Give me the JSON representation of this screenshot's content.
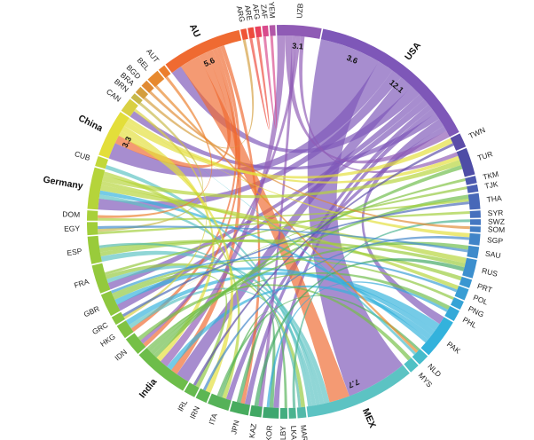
{
  "chart_data": {
    "type": "chord",
    "title": "",
    "countries": [
      {
        "code": "USA",
        "share": 12.1,
        "color": "#7e57b8",
        "major": true
      },
      {
        "code": "TWN",
        "share": 1.0,
        "color": "#5c4ca8",
        "major": false
      },
      {
        "code": "TUR",
        "share": 1.9,
        "color": "#4e4da6",
        "major": false
      },
      {
        "code": "TKM",
        "share": 0.5,
        "color": "#4c58ae",
        "major": false
      },
      {
        "code": "TJK",
        "share": 0.5,
        "color": "#4a5fb3",
        "major": false
      },
      {
        "code": "THA",
        "share": 1.1,
        "color": "#4868b8",
        "major": false
      },
      {
        "code": "SYR",
        "share": 0.5,
        "color": "#4670bd",
        "major": false
      },
      {
        "code": "SWZ",
        "share": 0.4,
        "color": "#4477c1",
        "major": false
      },
      {
        "code": "SOM",
        "share": 0.4,
        "color": "#427dc4",
        "major": false
      },
      {
        "code": "SGP",
        "share": 0.8,
        "color": "#4084c8",
        "major": false
      },
      {
        "code": "SAU",
        "share": 0.8,
        "color": "#3f8bcb",
        "major": false
      },
      {
        "code": "RUS",
        "share": 1.3,
        "color": "#3c8fce",
        "major": false
      },
      {
        "code": "PRT",
        "share": 0.6,
        "color": "#3a96d1",
        "major": false
      },
      {
        "code": "POL",
        "share": 0.8,
        "color": "#389dd4",
        "major": false
      },
      {
        "code": "PNG",
        "share": 0.6,
        "color": "#36a3d6",
        "major": false
      },
      {
        "code": "PHL",
        "share": 0.8,
        "color": "#34a9d8",
        "major": false
      },
      {
        "code": "PAK",
        "share": 2.8,
        "color": "#33b2dc",
        "major": false
      },
      {
        "code": "NLD",
        "share": 0.8,
        "color": "#45bccc",
        "major": false
      },
      {
        "code": "MYS",
        "share": 0.7,
        "color": "#4fc1c5",
        "major": false
      },
      {
        "code": "MEX",
        "share": 7.7,
        "color": "#5cc3c3",
        "major": true
      },
      {
        "code": "MAR",
        "share": 0.6,
        "color": "#52b9a9",
        "major": false
      },
      {
        "code": "LKA",
        "share": 0.5,
        "color": "#4ab38f",
        "major": false
      },
      {
        "code": "LBY",
        "share": 0.5,
        "color": "#44ad7f",
        "major": false
      },
      {
        "code": "KOR",
        "share": 1.1,
        "color": "#3ea76f",
        "major": false
      },
      {
        "code": "KAZ",
        "share": 0.8,
        "color": "#41a863",
        "major": false
      },
      {
        "code": "JPN",
        "share": 1.3,
        "color": "#48ac5e",
        "major": false
      },
      {
        "code": "ITA",
        "share": 1.5,
        "color": "#55b258",
        "major": false
      },
      {
        "code": "IRN",
        "share": 0.8,
        "color": "#5db653",
        "major": false
      },
      {
        "code": "IRL",
        "share": 0.8,
        "color": "#66ba4f",
        "major": false
      },
      {
        "code": "India",
        "share": 3.9,
        "color": "#6dbd4a",
        "major": true
      },
      {
        "code": "IDN",
        "share": 1.3,
        "color": "#75c046",
        "major": false
      },
      {
        "code": "HKG",
        "share": 1.0,
        "color": "#80c342",
        "major": false
      },
      {
        "code": "GRC",
        "share": 0.6,
        "color": "#87c540",
        "major": false
      },
      {
        "code": "GBR",
        "share": 1.6,
        "color": "#8ec73f",
        "major": false
      },
      {
        "code": "FRA",
        "share": 2.0,
        "color": "#93c93d",
        "major": false
      },
      {
        "code": "ESP",
        "share": 1.9,
        "color": "#99cb3b",
        "major": false
      },
      {
        "code": "EGY",
        "share": 0.9,
        "color": "#a1ce3a",
        "major": false
      },
      {
        "code": "DOM",
        "share": 0.7,
        "color": "#a8d039",
        "major": false
      },
      {
        "code": "Germany",
        "share": 2.9,
        "color": "#b5d43a",
        "major": true
      },
      {
        "code": "CUB",
        "share": 0.7,
        "color": "#c2d83a",
        "major": false
      },
      {
        "code": "China",
        "share": 3.3,
        "color": "#e3de3a",
        "major": true
      },
      {
        "code": "CAN",
        "share": 1.0,
        "color": "#d9d043",
        "major": false
      },
      {
        "code": "BRN",
        "share": 0.4,
        "color": "#c7b84a",
        "major": false
      },
      {
        "code": "BRA",
        "share": 0.5,
        "color": "#d49e3e",
        "major": false
      },
      {
        "code": "BGD",
        "share": 0.5,
        "color": "#e08a33",
        "major": false
      },
      {
        "code": "BEL",
        "share": 0.9,
        "color": "#e7892e",
        "major": false
      },
      {
        "code": "AUT",
        "share": 0.5,
        "color": "#ec7f2d",
        "major": false
      },
      {
        "code": "AU",
        "share": 5.6,
        "color": "#ef6a31",
        "major": true
      },
      {
        "code": "ARG",
        "share": 0.4,
        "color": "#ef5536",
        "major": false
      },
      {
        "code": "ARE",
        "share": 0.4,
        "color": "#ed4b3c",
        "major": false
      },
      {
        "code": "AFG",
        "share": 0.4,
        "color": "#e8415d",
        "major": false
      },
      {
        "code": "ZAF",
        "share": 0.4,
        "color": "#d94a8c",
        "major": false
      },
      {
        "code": "YEM",
        "share": 0.4,
        "color": "#b257a8",
        "major": false
      },
      {
        "code": "UZB",
        "share": 3.1,
        "color": "#8f5bb5",
        "major": false
      }
    ],
    "value_labels": [
      {
        "code": "USA",
        "text": "12.1"
      },
      {
        "code": "UZB",
        "text": "3.1"
      },
      {
        "code": "USA",
        "text": "3.6"
      },
      {
        "code": "AU",
        "text": "5.6"
      },
      {
        "code": "China",
        "text": "3.3"
      },
      {
        "code": "MEX",
        "text": "7.7"
      }
    ],
    "flows": [
      {
        "from": "USA",
        "to": "MEX",
        "value": 4.5
      },
      {
        "from": "USA",
        "to": "China",
        "value": 1.2
      },
      {
        "from": "USA",
        "to": "Germany",
        "value": 0.8
      },
      {
        "from": "USA",
        "to": "India",
        "value": 1.0
      },
      {
        "from": "USA",
        "to": "AU",
        "value": 0.8
      },
      {
        "from": "USA",
        "to": "FRA",
        "value": 0.5
      },
      {
        "from": "USA",
        "to": "GBR",
        "value": 0.5
      },
      {
        "from": "USA",
        "to": "JPN",
        "value": 0.4
      },
      {
        "from": "USA",
        "to": "KOR",
        "value": 0.4
      },
      {
        "from": "USA",
        "to": "CAN",
        "value": 0.5
      },
      {
        "from": "USA",
        "to": "PAK",
        "value": 0.6
      },
      {
        "from": "USA",
        "to": "ITA",
        "value": 0.4
      },
      {
        "from": "AU",
        "to": "MEX",
        "value": 1.5
      },
      {
        "from": "AU",
        "to": "China",
        "value": 0.6
      },
      {
        "from": "AU",
        "to": "India",
        "value": 0.5
      },
      {
        "from": "AU",
        "to": "HKG",
        "value": 0.3
      },
      {
        "from": "AU",
        "to": "IDN",
        "value": 0.3
      },
      {
        "from": "AU",
        "to": "JPN",
        "value": 0.3
      },
      {
        "from": "MEX",
        "to": "ESP",
        "value": 0.4
      },
      {
        "from": "MEX",
        "to": "FRA",
        "value": 0.3
      },
      {
        "from": "MEX",
        "to": "Germany",
        "value": 0.3
      },
      {
        "from": "MEX",
        "to": "HKG",
        "value": 0.3
      },
      {
        "from": "MEX",
        "to": "CUB",
        "value": 0.3
      },
      {
        "from": "PAK",
        "to": "HKG",
        "value": 0.6
      },
      {
        "from": "PAK",
        "to": "GBR",
        "value": 0.4
      },
      {
        "from": "PAK",
        "to": "India",
        "value": 0.4
      },
      {
        "from": "PAK",
        "to": "Germany",
        "value": 0.3
      },
      {
        "from": "UZB",
        "to": "India",
        "value": 0.6
      },
      {
        "from": "UZB",
        "to": "USA",
        "value": 0.5
      },
      {
        "from": "UZB",
        "to": "KAZ",
        "value": 0.3
      },
      {
        "from": "UZB",
        "to": "IDN",
        "value": 0.3
      },
      {
        "from": "UZB",
        "to": "TUR",
        "value": 0.3
      },
      {
        "from": "China",
        "to": "IRN",
        "value": 0.4
      },
      {
        "from": "China",
        "to": "India",
        "value": 0.4
      },
      {
        "from": "China",
        "to": "TWN",
        "value": 0.4
      },
      {
        "from": "China",
        "to": "TUR",
        "value": 0.3
      },
      {
        "from": "China",
        "to": "SGP",
        "value": 0.3
      },
      {
        "from": "Germany",
        "to": "RUS",
        "value": 0.4
      },
      {
        "from": "Germany",
        "to": "POL",
        "value": 0.3
      },
      {
        "from": "Germany",
        "to": "TUR",
        "value": 0.4
      },
      {
        "from": "Germany",
        "to": "ITA",
        "value": 0.3
      },
      {
        "from": "India",
        "to": "TUR",
        "value": 0.3
      },
      {
        "from": "India",
        "to": "THA",
        "value": 0.3
      },
      {
        "from": "India",
        "to": "SAU",
        "value": 0.3
      },
      {
        "from": "India",
        "to": "PHL",
        "value": 0.3
      },
      {
        "from": "FRA",
        "to": "MAR",
        "value": 0.3
      },
      {
        "from": "FRA",
        "to": "TJK",
        "value": 0.2
      },
      {
        "from": "ESP",
        "to": "RUS",
        "value": 0.3
      },
      {
        "from": "ESP",
        "to": "PRT",
        "value": 0.3
      },
      {
        "from": "GBR",
        "to": "IRL",
        "value": 0.3
      },
      {
        "from": "GBR",
        "to": "PNG",
        "value": 0.2
      },
      {
        "from": "EGY",
        "to": "SYR",
        "value": 0.2
      },
      {
        "from": "DOM",
        "to": "THA",
        "value": 0.2
      },
      {
        "from": "HKG",
        "to": "TKM",
        "value": 0.2
      },
      {
        "from": "IDN",
        "to": "MYS",
        "value": 0.3
      },
      {
        "from": "JPN",
        "to": "KOR",
        "value": 0.3
      },
      {
        "from": "ITA",
        "to": "LBY",
        "value": 0.2
      },
      {
        "from": "ITA",
        "to": "NLD",
        "value": 0.2
      },
      {
        "from": "KAZ",
        "to": "RUS",
        "value": 0.3
      },
      {
        "from": "LKA",
        "to": "SWZ",
        "value": 0.2
      },
      {
        "from": "BEL",
        "to": "NLD",
        "value": 0.2
      },
      {
        "from": "BGD",
        "to": "SOM",
        "value": 0.2
      },
      {
        "from": "BRA",
        "to": "ARG",
        "value": 0.2
      },
      {
        "from": "ARE",
        "to": "AFG",
        "value": 0.2
      },
      {
        "from": "ZAF",
        "to": "YEM",
        "value": 0.2
      },
      {
        "from": "CAN",
        "to": "GRC",
        "value": 0.2
      },
      {
        "from": "BRN",
        "to": "EGY",
        "value": 0.2
      },
      {
        "from": "AUT",
        "to": "DOM",
        "value": 0.2
      },
      {
        "from": "TWN",
        "to": "IRL",
        "value": 0.2
      },
      {
        "from": "THA",
        "to": "GRC",
        "value": 0.2
      },
      {
        "from": "SGP",
        "to": "IRN",
        "value": 0.2
      },
      {
        "from": "SAU",
        "to": "EGY",
        "value": 0.2
      },
      {
        "from": "POL",
        "to": "GBR",
        "value": 0.2
      },
      {
        "from": "PHL",
        "to": "KOR",
        "value": 0.2
      },
      {
        "from": "NLD",
        "to": "China",
        "value": 0.2
      },
      {
        "from": "MAR",
        "to": "ESP",
        "value": 0.2
      }
    ]
  }
}
